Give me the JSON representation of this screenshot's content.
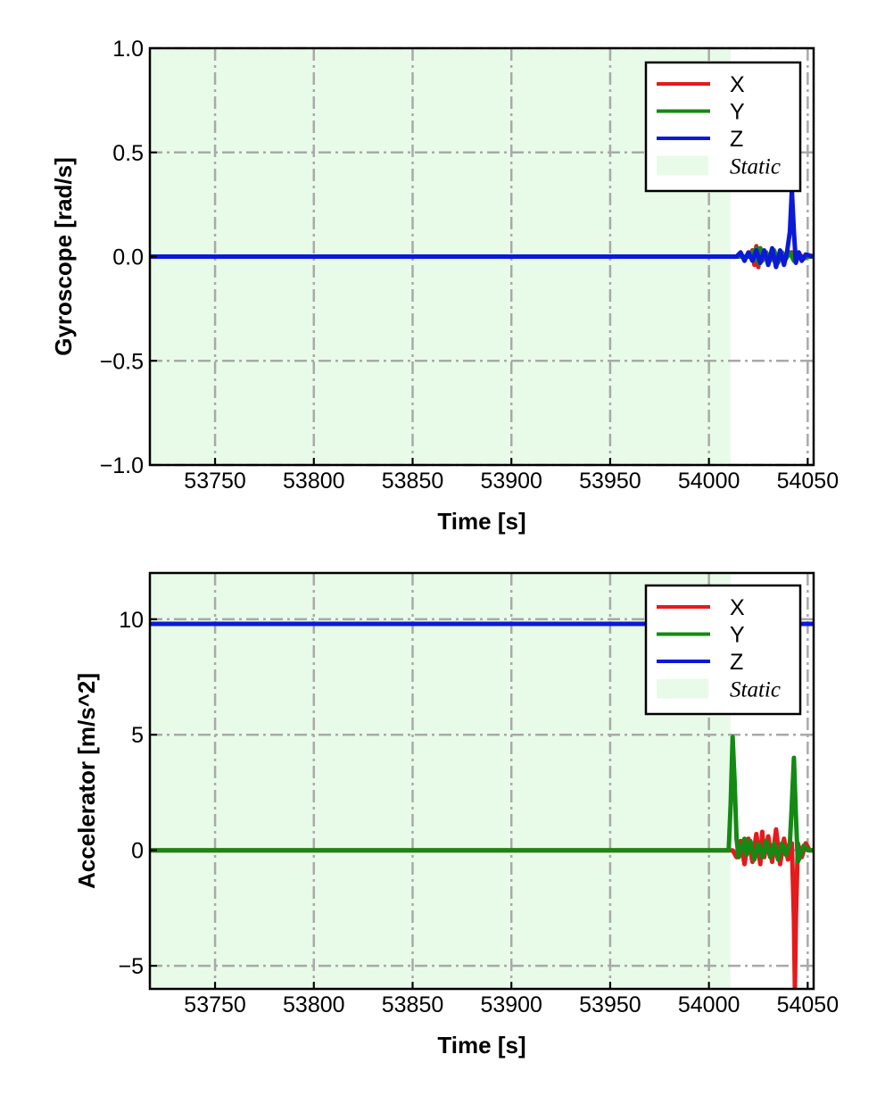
{
  "chart_data": [
    {
      "type": "line",
      "xlabel": "Time [s]",
      "ylabel": "Gyroscope [rad/s]",
      "xlim": [
        53717,
        54053
      ],
      "ylim": [
        -1.0,
        1.0
      ],
      "xticks": [
        53750,
        53800,
        53850,
        53900,
        53950,
        54000,
        54050
      ],
      "xtick_labels": [
        "53750",
        "53800",
        "53850",
        "53900",
        "53950",
        "54000",
        "54050"
      ],
      "yticks": [
        -1.0,
        -0.5,
        0.0,
        0.5,
        1.0
      ],
      "ytick_labels": [
        "−1.0",
        "−0.5",
        "0.0",
        "0.5",
        "1.0"
      ],
      "grid": true,
      "legend_position": "top-right",
      "static_region": {
        "label": "Static",
        "x_start": 53717,
        "x_end": 54011,
        "color": "#e8fbe8"
      },
      "series": [
        {
          "name": "X",
          "color": "#e41a1c",
          "x": [
            53717,
            54020,
            54022,
            54023,
            54024,
            54025,
            54026,
            54027,
            54028,
            54030,
            54032,
            54034,
            54036,
            54038,
            54040,
            54042,
            54044,
            54046,
            54048,
            54050,
            54053
          ],
          "y": [
            0.0,
            0.0,
            0.03,
            -0.04,
            0.05,
            -0.05,
            0.04,
            -0.02,
            0.02,
            -0.02,
            0.03,
            -0.03,
            0.02,
            -0.02,
            0.01,
            0.02,
            -0.02,
            0.01,
            -0.01,
            0.0,
            0.0
          ]
        },
        {
          "name": "Y",
          "color": "#138a13",
          "x": [
            53717,
            54020,
            54022,
            54024,
            54025,
            54026,
            54027,
            54029,
            54031,
            54033,
            54035,
            54037,
            54039,
            54041,
            54043,
            54045,
            54047,
            54050,
            54053
          ],
          "y": [
            0.0,
            0.0,
            0.02,
            0.04,
            -0.03,
            0.04,
            -0.02,
            0.02,
            -0.02,
            0.03,
            -0.03,
            0.02,
            -0.01,
            0.02,
            -0.02,
            0.01,
            -0.01,
            0.0,
            0.0
          ]
        },
        {
          "name": "Z",
          "color": "#0b19d8",
          "x": [
            53717,
            54014,
            54016,
            54018,
            54020,
            54022,
            54024,
            54026,
            54028,
            54030,
            54032,
            54034,
            54036,
            54038,
            54039.5,
            54041,
            54042,
            54043,
            54044,
            54045.5,
            54047,
            54049,
            54053
          ],
          "y": [
            0.0,
            0.0,
            0.02,
            -0.02,
            0.02,
            -0.02,
            0.03,
            -0.03,
            0.03,
            -0.04,
            0.04,
            -0.05,
            0.03,
            -0.04,
            0.02,
            0.12,
            0.32,
            0.12,
            -0.03,
            0.02,
            -0.02,
            0.01,
            0.0
          ]
        }
      ]
    },
    {
      "type": "line",
      "xlabel": "Time [s]",
      "ylabel": "Accelerator [m/s^2]",
      "xlim": [
        53717,
        54053
      ],
      "ylim": [
        -6,
        12
      ],
      "xticks": [
        53750,
        53800,
        53850,
        53900,
        53950,
        54000,
        54050
      ],
      "xtick_labels": [
        "53750",
        "53800",
        "53850",
        "53900",
        "53950",
        "54000",
        "54050"
      ],
      "yticks": [
        -5,
        0,
        5,
        10
      ],
      "ytick_labels": [
        "−5",
        "0",
        "5",
        "10"
      ],
      "grid": true,
      "legend_position": "top-right",
      "static_region": {
        "label": "Static",
        "x_start": 53717,
        "x_end": 54011,
        "color": "#e8fbe8"
      },
      "series": [
        {
          "name": "X",
          "color": "#e41a1c",
          "x": [
            53717,
            54012,
            54014,
            54016,
            54018,
            54020,
            54022,
            54024,
            54026,
            54027,
            54028,
            54030,
            54032,
            54034,
            54036,
            54038,
            54040,
            54042,
            54043,
            54043.5,
            54044,
            54045,
            54047,
            54049,
            54051,
            54053
          ],
          "y": [
            0.0,
            0.0,
            -0.3,
            0.4,
            -0.6,
            0.5,
            -0.5,
            0.7,
            -0.6,
            0.8,
            -0.3,
            0.6,
            -0.5,
            0.9,
            -0.6,
            0.5,
            -0.4,
            0.3,
            -3.0,
            -6.0,
            -3.0,
            0.3,
            -0.3,
            0.3,
            0.0,
            0.0
          ]
        },
        {
          "name": "Y",
          "color": "#138a13",
          "x": [
            53717,
            54010,
            54011,
            54012,
            54013,
            54014,
            54015,
            54016,
            54018,
            54019,
            54021,
            54023,
            54025,
            54027,
            54029,
            54031,
            54033,
            54035,
            54037,
            54039,
            54041,
            54042,
            54043,
            54044,
            54045,
            54046,
            54048,
            54050,
            54053
          ],
          "y": [
            0.0,
            0.0,
            2.0,
            4.9,
            3.0,
            0.5,
            -0.3,
            0.0,
            0.5,
            -0.2,
            0.4,
            -0.4,
            0.3,
            -0.3,
            0.4,
            -0.3,
            0.3,
            -0.4,
            0.3,
            -0.2,
            0.3,
            2.0,
            4.0,
            1.5,
            -0.5,
            -0.3,
            0.2,
            0.0,
            0.0
          ]
        },
        {
          "name": "Z",
          "color": "#0b19d8",
          "x": [
            53717,
            54053
          ],
          "y": [
            9.8,
            9.8
          ]
        }
      ]
    }
  ]
}
